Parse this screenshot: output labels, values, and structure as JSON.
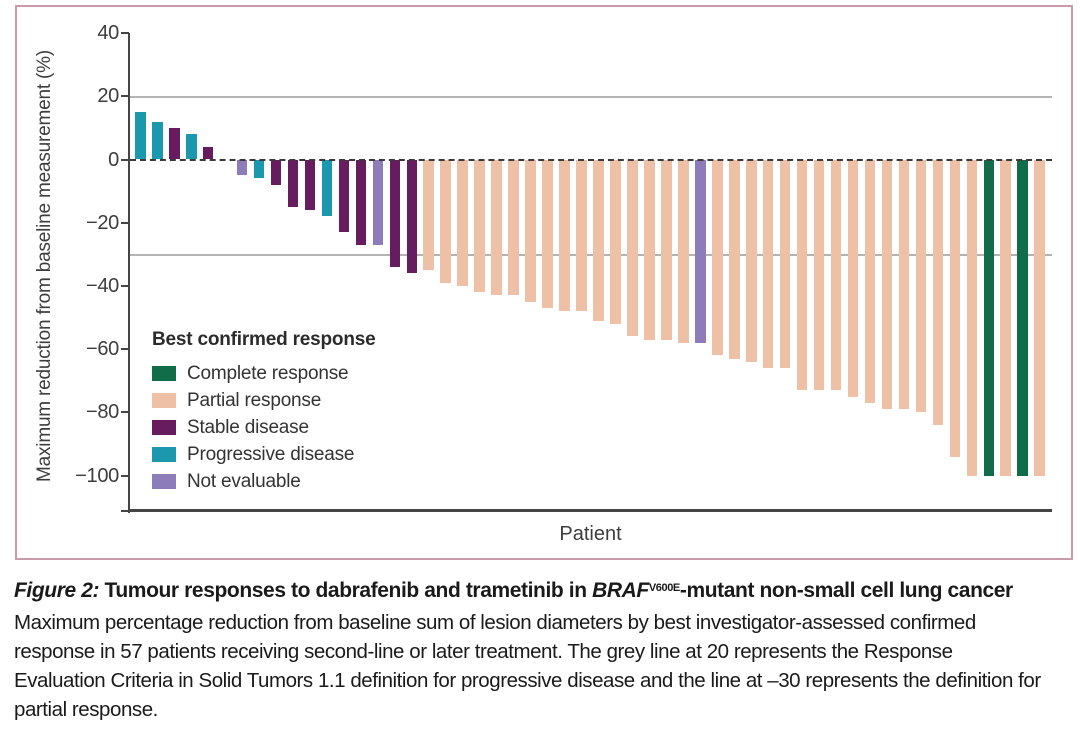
{
  "figure": {
    "caption": {
      "label": "Figure 2:",
      "title_pre": " Tumour responses to dabrafenib and trametinib in ",
      "gene": "BRAF",
      "gene_sup": "V600E",
      "title_post": "-mutant non-small cell lung cancer",
      "body": "Maximum percentage reduction from baseline sum of lesion diameters by best investigator-assessed confirmed response in 57 patients receiving second-line or later treatment. The grey line at 20 represents the Response Evaluation Criteria in Solid Tumors 1.1 definition for progressive disease and the line at –30 represents the definition for partial response."
    }
  },
  "chart_data": {
    "type": "bar",
    "title": "",
    "xlabel": "Patient",
    "ylabel": "Maximum reduction from baseline measurement (%)",
    "ylim": [
      -110,
      40
    ],
    "yticks": [
      40,
      20,
      0,
      -20,
      -40,
      -60,
      -80,
      -100
    ],
    "ytick_labels": [
      "40",
      "20",
      "0",
      "−20",
      "−40",
      "−60",
      "−80",
      "−100"
    ],
    "grid": "off",
    "reference_lines": [
      {
        "y": 20,
        "style": "solid",
        "color": "#b3b3b3",
        "meaning": "RECIST 1.1 progressive disease threshold"
      },
      {
        "y": 0,
        "style": "dashed",
        "color": "#3a3a3a",
        "meaning": "baseline"
      },
      {
        "y": -30,
        "style": "solid",
        "color": "#b3b3b3",
        "meaning": "RECIST 1.1 partial response threshold"
      }
    ],
    "legend": {
      "title": "Best confirmed response",
      "position": "inside-left",
      "entries": [
        {
          "label": "Complete response",
          "color": "#116c4a"
        },
        {
          "label": "Partial response",
          "color": "#eec0a5"
        },
        {
          "label": "Stable disease",
          "color": "#671c60"
        },
        {
          "label": "Progressive disease",
          "color": "#1b98ad"
        },
        {
          "label": "Not evaluable",
          "color": "#8d7cba"
        }
      ]
    },
    "series": [
      {
        "name": "Maximum reduction from baseline (%)",
        "values": [
          15,
          12,
          10,
          8,
          4,
          0,
          -5,
          -6,
          -8,
          -15,
          -16,
          -18,
          -23,
          -27,
          -27,
          -34,
          -36,
          -35,
          -39,
          -40,
          -42,
          -43,
          -43,
          -45,
          -47,
          -48,
          -48,
          -51,
          -52,
          -56,
          -57,
          -57,
          -58,
          -58,
          -62,
          -63,
          -64,
          -66,
          -66,
          -73,
          -73,
          -73,
          -75,
          -77,
          -79,
          -79,
          -80,
          -84,
          -94,
          -100,
          -100,
          -100,
          -100,
          -100
        ],
        "responses": [
          "Progressive disease",
          "Progressive disease",
          "Stable disease",
          "Progressive disease",
          "Stable disease",
          "Stable disease",
          "Not evaluable",
          "Progressive disease",
          "Stable disease",
          "Stable disease",
          "Stable disease",
          "Progressive disease",
          "Stable disease",
          "Stable disease",
          "Not evaluable",
          "Stable disease",
          "Stable disease",
          "Partial response",
          "Partial response",
          "Partial response",
          "Partial response",
          "Partial response",
          "Partial response",
          "Partial response",
          "Partial response",
          "Partial response",
          "Partial response",
          "Partial response",
          "Partial response",
          "Partial response",
          "Partial response",
          "Partial response",
          "Partial response",
          "Not evaluable",
          "Partial response",
          "Partial response",
          "Partial response",
          "Partial response",
          "Partial response",
          "Partial response",
          "Partial response",
          "Partial response",
          "Partial response",
          "Partial response",
          "Partial response",
          "Partial response",
          "Partial response",
          "Partial response",
          "Partial response",
          "Partial response",
          "Complete response",
          "Partial response",
          "Complete response",
          "Partial response"
        ]
      }
    ]
  },
  "colors": {
    "panel_border": "#c99aa9",
    "axis": "#454545",
    "chart_text": "#3d3d3d",
    "caption_text": "#1a1a1a"
  }
}
